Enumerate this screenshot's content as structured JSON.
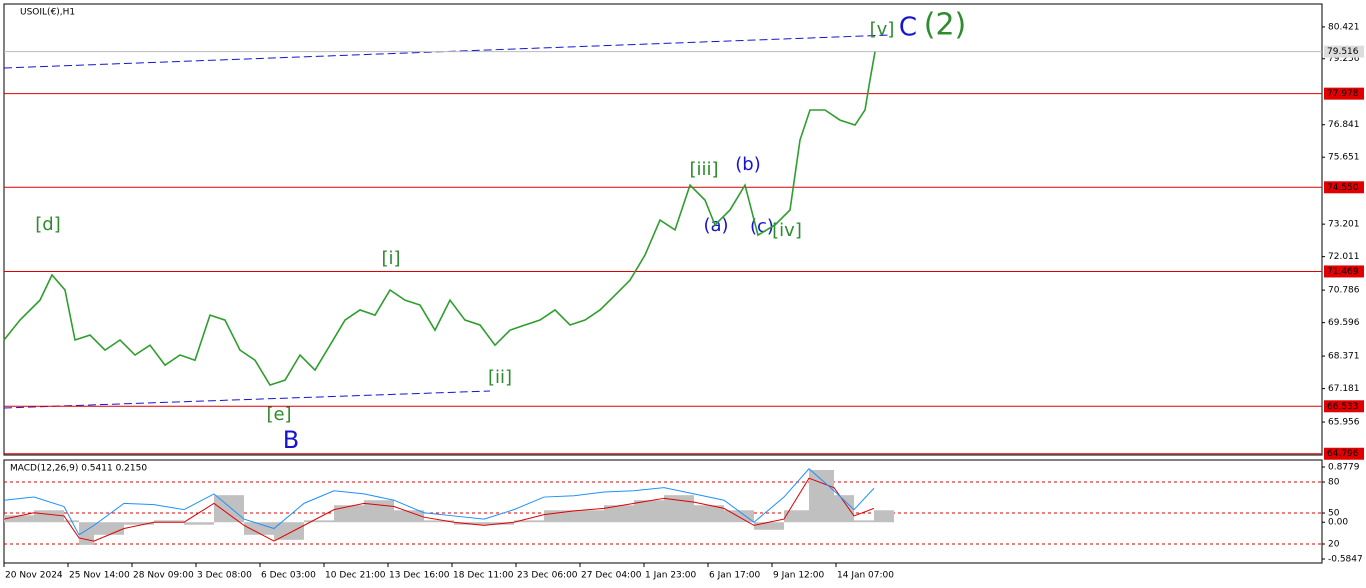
{
  "chart_data": [
    {
      "type": "line",
      "title": "USOIL(€),H1",
      "x": [
        0,
        16,
        36,
        48,
        61,
        71,
        86,
        101,
        116,
        131,
        146,
        161,
        176,
        191,
        206,
        221,
        236,
        251,
        266,
        281,
        296,
        311,
        326,
        341,
        356,
        371,
        386,
        401,
        416,
        431,
        446,
        461,
        476,
        491,
        506,
        521,
        536,
        551,
        566,
        581,
        596,
        611,
        626,
        641,
        656,
        671,
        686,
        701,
        711,
        726,
        741,
        754,
        771,
        786,
        796,
        806,
        821,
        836,
        851,
        861,
        866,
        871
      ],
      "series": [
        {
          "color": "#2e9e2e",
          "values": [
            68.96,
            69.69,
            70.42,
            71.34,
            70.79,
            68.96,
            69.14,
            68.59,
            68.96,
            68.41,
            68.77,
            68.04,
            68.41,
            68.22,
            69.87,
            69.69,
            68.59,
            68.22,
            67.31,
            67.49,
            68.41,
            67.86,
            68.77,
            69.69,
            70.06,
            69.87,
            70.79,
            70.42,
            70.24,
            69.32,
            70.42,
            69.69,
            69.51,
            68.77,
            69.32,
            69.51,
            69.69,
            70.06,
            69.51,
            69.69,
            70.06,
            70.6,
            71.15,
            72.07,
            73.35,
            72.99,
            74.63,
            74.08,
            73.17,
            73.72,
            74.63,
            72.8,
            73.17,
            73.72,
            76.28,
            77.38,
            77.38,
            77.01,
            76.83,
            77.38,
            78.48,
            79.51
          ]
        }
      ],
      "xlim": [
        0,
        1318
      ],
      "ylim": [
        64.75,
        81.26
      ],
      "yticks": [
        80.421,
        79.256,
        76.841,
        75.651,
        73.201,
        72.011,
        70.786,
        69.596,
        68.371,
        67.181,
        65.956
      ],
      "levels": [
        77.978,
        74.55,
        71.469,
        66.533,
        64.796
      ],
      "level_labels": [
        "77.978",
        "74.550",
        "71.469",
        "66.533",
        "64.796"
      ],
      "level_color": "#e00000",
      "last_price": 79.516,
      "annotations": [
        "[d]",
        "[i]",
        "[ii]",
        "[e]",
        "B",
        "[iii]",
        "(b)",
        "(a)",
        "(c)",
        "[iv]",
        "[v]",
        "C",
        "(2)"
      ]
    },
    {
      "type": "line",
      "title": "MACD(12,26,9) 0.5411 0.2150",
      "x": [
        0,
        30,
        60,
        75,
        90,
        120,
        150,
        180,
        210,
        240,
        270,
        300,
        330,
        360,
        390,
        420,
        450,
        480,
        510,
        540,
        570,
        600,
        630,
        660,
        690,
        720,
        750,
        780,
        805,
        830,
        850,
        870
      ],
      "series": [
        {
          "color": "#c0c0c0",
          "style": "area",
          "values": [
            0.11,
            0.19,
            0.03,
            -0.36,
            -0.2,
            -0.04,
            0.03,
            -0.04,
            0.43,
            -0.2,
            -0.28,
            0.03,
            0.27,
            0.35,
            0.19,
            0.03,
            -0.04,
            -0.04,
            0.03,
            0.19,
            0.19,
            0.27,
            0.35,
            0.43,
            0.27,
            0.19,
            -0.12,
            0.19,
            0.83,
            0.43,
            0.03,
            0.19
          ]
        },
        {
          "color": "#e00000",
          "values": [
            0.05,
            0.15,
            0.1,
            -0.25,
            -0.3,
            -0.1,
            0,
            0,
            0.3,
            -0.05,
            -0.3,
            -0.05,
            0.2,
            0.3,
            0.25,
            0.08,
            0,
            -0.05,
            0,
            0.12,
            0.18,
            0.22,
            0.3,
            0.38,
            0.32,
            0.22,
            -0.05,
            0.05,
            0.7,
            0.55,
            0.1,
            0.22
          ]
        },
        {
          "color": "#1e90ff",
          "values": [
            0.35,
            0.4,
            0.25,
            -0.2,
            -0.05,
            0.3,
            0.28,
            0.2,
            0.45,
            0.05,
            -0.1,
            0.3,
            0.5,
            0.45,
            0.35,
            0.15,
            0.1,
            0.05,
            0.2,
            0.4,
            0.42,
            0.48,
            0.5,
            0.55,
            0.45,
            0.35,
            0,
            0.4,
            0.85,
            0.5,
            0.2,
            0.54
          ]
        }
      ],
      "xlim": [
        0,
        1318
      ],
      "ylim": [
        -0.648,
        0.989
      ],
      "yticks": [
        0.8779,
        {
          "value": 0.639,
          "label": "80"
        },
        {
          "value": 0.146,
          "label": "50"
        },
        {
          "value": 0,
          "label": "0.00"
        },
        {
          "value": -0.346,
          "label": "20"
        },
        -0.5847
      ],
      "xticks": [
        {
          "value": 0,
          "label": "20 Nov 2024"
        },
        {
          "value": 64,
          "label": "25 Nov 14:00"
        },
        {
          "value": 128,
          "label": "28 Nov 09:00"
        },
        {
          "value": 192,
          "label": "3 Dec 08:00"
        },
        {
          "value": 256,
          "label": "6 Dec 03:00"
        },
        {
          "value": 320,
          "label": "10 Dec 21:00"
        },
        {
          "value": 384,
          "label": "13 Dec 16:00"
        },
        {
          "value": 448,
          "label": "18 Dec 11:00"
        },
        {
          "value": 512,
          "label": "23 Dec 06:00"
        },
        {
          "value": 576,
          "label": "27 Dec 04:00"
        },
        {
          "value": 640,
          "label": "1 Jan 23:00"
        },
        {
          "value": 704,
          "label": "6 Jan 17:00"
        },
        {
          "value": 768,
          "label": "9 Jan 12:00"
        },
        {
          "value": 832,
          "label": "14 Jan 07:00"
        }
      ]
    }
  ]
}
